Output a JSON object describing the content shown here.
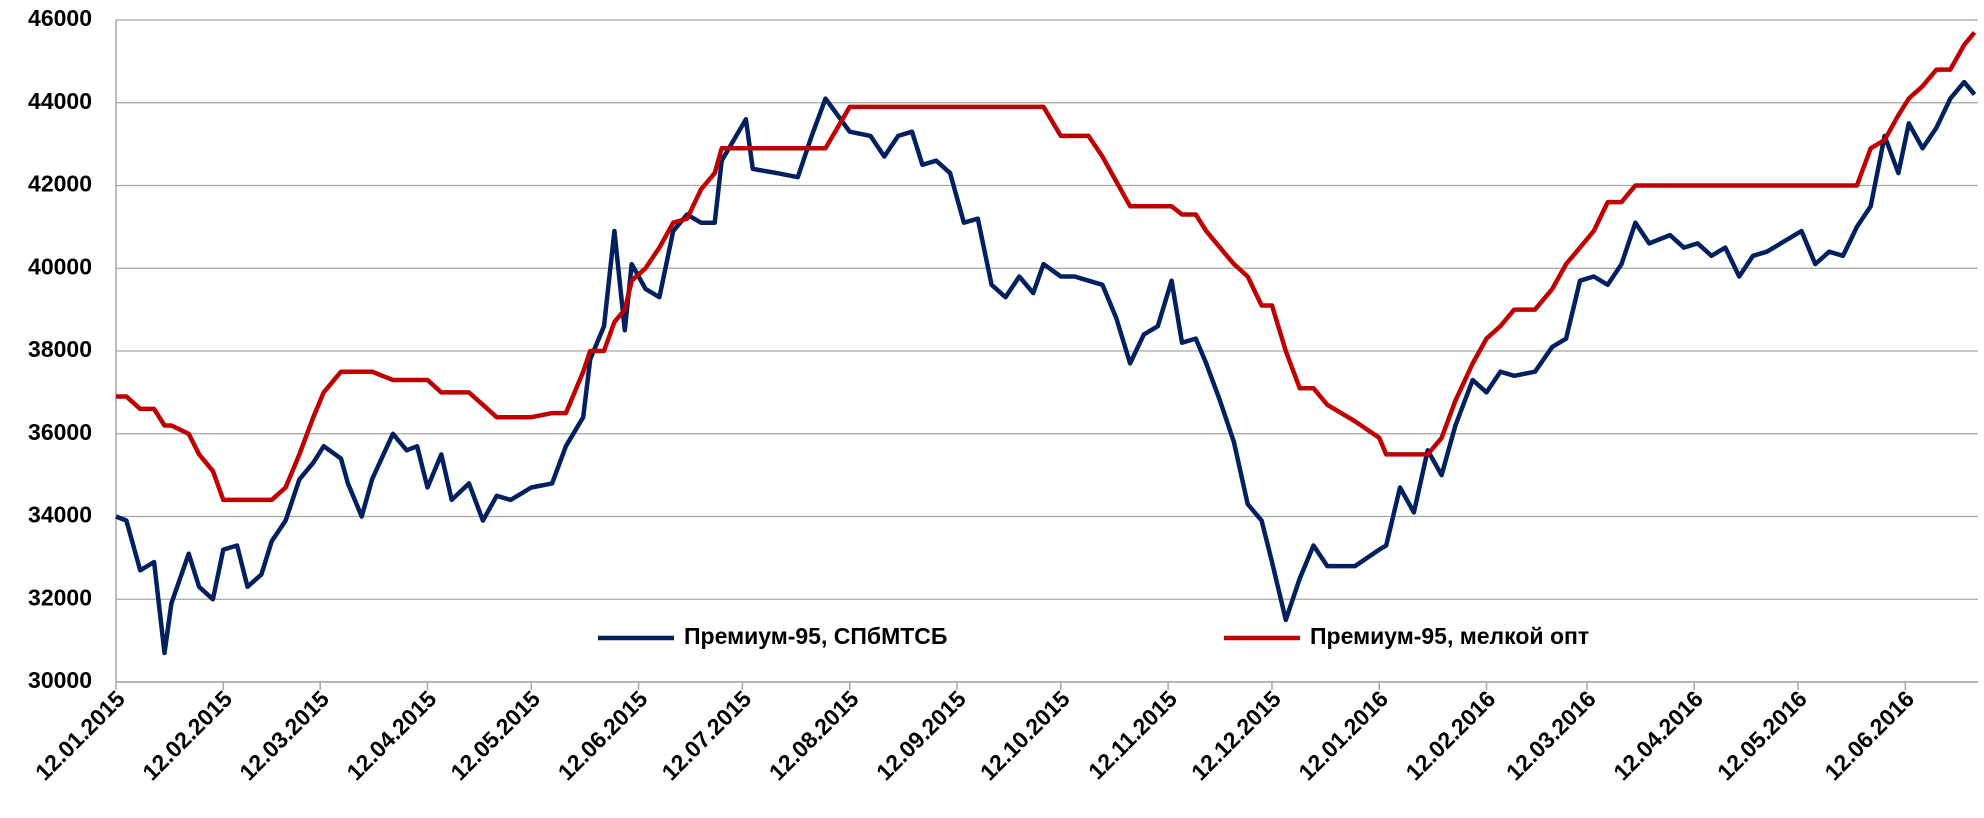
{
  "chart_data": {
    "type": "line",
    "x": [
      "12.01.2015",
      "15.01.2015",
      "19.01.2015",
      "23.01.2015",
      "26.01.2015",
      "28.01.2015",
      "02.02.2015",
      "05.02.2015",
      "09.02.2015",
      "12.02.2015",
      "16.02.2015",
      "19.02.2015",
      "23.02.2015",
      "26.02.2015",
      "02.03.2015",
      "06.03.2015",
      "10.03.2015",
      "13.03.2015",
      "18.03.2015",
      "20.03.2015",
      "24.03.2015",
      "27.03.2015",
      "02.04.2015",
      "06.04.2015",
      "09.04.2015",
      "12.04.2015",
      "16.04.2015",
      "19.04.2015",
      "24.04.2015",
      "28.04.2015",
      "02.05.2015",
      "06.05.2015",
      "12.05.2015",
      "18.05.2015",
      "22.05.2015",
      "27.05.2015",
      "29.05.2015",
      "02.06.2015",
      "05.06.2015",
      "08.06.2015",
      "10.06.2015",
      "14.06.2015",
      "18.06.2015",
      "22.06.2015",
      "26.06.2015",
      "30.06.2015",
      "04.07.2015",
      "06.07.2015",
      "13.07.2015",
      "15.07.2015",
      "22.07.2015",
      "28.07.2015",
      "01.08.2015",
      "05.08.2015",
      "12.08.2015",
      "18.08.2015",
      "22.08.2015",
      "26.08.2015",
      "30.08.2015",
      "02.09.2015",
      "06.09.2015",
      "10.09.2015",
      "14.09.2015",
      "18.09.2015",
      "22.09.2015",
      "26.09.2015",
      "30.09.2015",
      "04.10.2015",
      "07.10.2015",
      "12.10.2015",
      "16.10.2015",
      "20.10.2015",
      "24.10.2015",
      "28.10.2015",
      "01.11.2015",
      "05.11.2015",
      "09.11.2015",
      "13.11.2015",
      "16.11.2015",
      "20.11.2015",
      "23.11.2015",
      "27.11.2015",
      "01.12.2015",
      "05.12.2015",
      "09.12.2015",
      "12.12.2015",
      "16.12.2015",
      "20.12.2015",
      "24.12.2015",
      "28.12.2015",
      "05.01.2016",
      "12.01.2016",
      "14.01.2016",
      "18.01.2016",
      "22.01.2016",
      "26.01.2016",
      "30.01.2016",
      "03.02.2016",
      "08.02.2016",
      "12.02.2016",
      "16.02.2016",
      "20.02.2016",
      "26.02.2016",
      "02.03.2016",
      "06.03.2016",
      "10.03.2016",
      "14.03.2016",
      "18.03.2016",
      "22.03.2016",
      "26.03.2016",
      "30.03.2016",
      "05.04.2016",
      "09.04.2016",
      "13.04.2016",
      "17.04.2016",
      "21.04.2016",
      "25.04.2016",
      "29.04.2016",
      "03.05.2016",
      "09.05.2016",
      "13.05.2016",
      "17.05.2016",
      "21.05.2016",
      "25.05.2016",
      "29.05.2016",
      "02.06.2016",
      "06.06.2016",
      "10.06.2016",
      "13.06.2016",
      "17.06.2016",
      "21.06.2016",
      "25.06.2016",
      "29.06.2016",
      "02.07.2016"
    ],
    "series": [
      {
        "name": "Премиум-95, СПбМТСБ",
        "color": "#002060",
        "values": [
          34000,
          33900,
          32700,
          32900,
          30700,
          31900,
          33100,
          32300,
          32000,
          33200,
          33300,
          32300,
          32600,
          33400,
          33900,
          34900,
          35300,
          35700,
          35400,
          34800,
          34000,
          34900,
          36000,
          35600,
          35700,
          34700,
          35500,
          34400,
          34800,
          33900,
          34500,
          34400,
          34700,
          34800,
          35700,
          36400,
          37800,
          38600,
          40900,
          38500,
          40100,
          39500,
          39300,
          40900,
          41300,
          41100,
          41100,
          42600,
          43600,
          42400,
          42300,
          42200,
          43200,
          44100,
          43300,
          43200,
          42700,
          43200,
          43300,
          42500,
          42600,
          42300,
          41100,
          41200,
          39600,
          39300,
          39800,
          39400,
          40100,
          39800,
          39800,
          39700,
          39600,
          38800,
          37700,
          38400,
          38600,
          39700,
          38200,
          38300,
          37700,
          36800,
          35800,
          34300,
          33900,
          32900,
          31500,
          32500,
          33300,
          32800,
          32800,
          33200,
          33300,
          34700,
          34100,
          35600,
          35000,
          36200,
          37300,
          37000,
          37500,
          37400,
          37500,
          38100,
          38300,
          39700,
          39800,
          39600,
          40100,
          41100,
          40600,
          40800,
          40500,
          40600,
          40300,
          40500,
          39800,
          40300,
          40400,
          40700,
          40900,
          40100,
          40400,
          40300,
          41000,
          41500,
          43200,
          42300,
          43500,
          42900,
          43400,
          44100,
          44500,
          44200
        ]
      },
      {
        "name": "Премиум-95, мелкой опт",
        "color": "#c00000",
        "values": [
          36900,
          36900,
          36600,
          36600,
          36200,
          36200,
          36000,
          35500,
          35100,
          34400,
          34400,
          34400,
          34400,
          34400,
          34700,
          35500,
          36400,
          37000,
          37500,
          37500,
          37500,
          37500,
          37300,
          37300,
          37300,
          37300,
          37000,
          37000,
          37000,
          36700,
          36400,
          36400,
          36400,
          36500,
          36500,
          37500,
          38000,
          38000,
          38700,
          39000,
          39700,
          40000,
          40500,
          41100,
          41200,
          41900,
          42300,
          42900,
          42900,
          42900,
          42900,
          42900,
          42900,
          42900,
          43900,
          43900,
          43900,
          43900,
          43900,
          43900,
          43900,
          43900,
          43900,
          43900,
          43900,
          43900,
          43900,
          43900,
          43900,
          43200,
          43200,
          43200,
          42700,
          42100,
          41500,
          41500,
          41500,
          41500,
          41300,
          41300,
          40900,
          40500,
          40100,
          39800,
          39100,
          39100,
          38000,
          37100,
          37100,
          36700,
          36300,
          35900,
          35500,
          35500,
          35500,
          35500,
          35900,
          36800,
          37700,
          38300,
          38600,
          39000,
          39000,
          39500,
          40100,
          40500,
          40900,
          41600,
          41600,
          42000,
          42000,
          42000,
          42000,
          42000,
          42000,
          42000,
          42000,
          42000,
          42000,
          42000,
          42000,
          42000,
          42000,
          42000,
          42000,
          42900,
          43100,
          43700,
          44100,
          44400,
          44800,
          44800,
          45400,
          45700
        ]
      }
    ],
    "xlim": [
      "12.01.2015",
      "03.07.2016"
    ],
    "xticks": [
      "12.01.2015",
      "12.02.2015",
      "12.03.2015",
      "12.04.2015",
      "12.05.2015",
      "12.06.2015",
      "12.07.2015",
      "12.08.2015",
      "12.09.2015",
      "12.10.2015",
      "12.11.2015",
      "12.12.2015",
      "12.01.2016",
      "12.02.2016",
      "12.03.2016",
      "12.04.2016",
      "12.05.2016",
      "12.06.2016"
    ],
    "ylim": [
      30000,
      46000
    ],
    "yticks": [
      30000,
      32000,
      34000,
      36000,
      38000,
      40000,
      42000,
      44000,
      46000
    ],
    "grid": true,
    "legend": "bottom"
  }
}
